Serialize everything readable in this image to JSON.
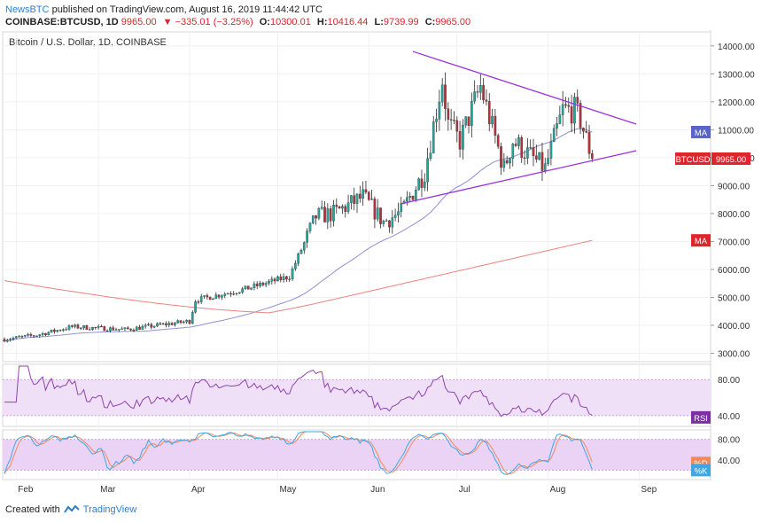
{
  "header": {
    "publisher": "NewsBTC",
    "published_text": " published on TradingView.com, August 16, 2019 11:44:42 UTC"
  },
  "ohlc": {
    "symbol": "COINBASE:BTCUSD, 1D",
    "last": "9965.00",
    "change": "−335.01 (−3.25%)",
    "o_label": "O:",
    "o": "10300.01",
    "h_label": "H:",
    "h": "10416.44",
    "l_label": "L:",
    "l": "9739.99",
    "c_label": "C:",
    "c": "9965.00"
  },
  "footer": {
    "created_with": "Created with",
    "brand": "TradingView"
  },
  "colors": {
    "up": "#26a69a",
    "down": "#b4333a",
    "ma_short": "#8f8fd4",
    "ma_long": "#f08080",
    "trendline": "#9b30e0",
    "rsi_line": "#8e44ad",
    "stoch_k": "#3fa7e0",
    "stoch_d": "#f08a5d",
    "rsi_band": "#efe0f7",
    "stoch_band": "#ebd3f6",
    "price_badge": "#e0242c",
    "rsi_badge": "#7b2fa0"
  },
  "chart_data": {
    "type": "candlestick",
    "title": "Bitcoin / U.S. Dollar, 1D, COINBASE",
    "x_ticks": [
      "Feb",
      "Mar",
      "Apr",
      "May",
      "Jun",
      "Jul",
      "Aug",
      "Sep"
    ],
    "price_axis": {
      "ylim": [
        2700,
        14500
      ],
      "ticks": [
        "14000.00",
        "13000.00",
        "12000.00",
        "11000.00",
        "10000.00",
        "9000.00",
        "8000.00",
        "7000.00",
        "6000.00",
        "5000.00",
        "4000.00",
        "3000.00"
      ]
    },
    "price_keypoints": [
      [
        "2019-01-28",
        3500
      ],
      [
        "2019-02-08",
        3650
      ],
      [
        "2019-02-20",
        3950
      ],
      [
        "2019-03-10",
        3850
      ],
      [
        "2019-04-01",
        4150
      ],
      [
        "2019-04-03",
        4900
      ],
      [
        "2019-04-20",
        5300
      ],
      [
        "2019-05-05",
        5750
      ],
      [
        "2019-05-14",
        7900
      ],
      [
        "2019-05-20",
        8000
      ],
      [
        "2019-05-30",
        8600
      ],
      [
        "2019-06-06",
        7700
      ],
      [
        "2019-06-12",
        8050
      ],
      [
        "2019-06-20",
        9500
      ],
      [
        "2019-06-26",
        12800
      ],
      [
        "2019-06-28",
        11200
      ],
      [
        "2019-07-02",
        10600
      ],
      [
        "2019-07-09",
        12550
      ],
      [
        "2019-07-17",
        9600
      ],
      [
        "2019-07-20",
        10600
      ],
      [
        "2019-07-31",
        9600
      ],
      [
        "2019-08-06",
        11700
      ],
      [
        "2019-08-10",
        11700
      ],
      [
        "2019-08-12",
        11350
      ],
      [
        "2019-08-16",
        9965
      ]
    ],
    "last_price": 9965.0,
    "series": [
      {
        "name": "BTCUSD",
        "kind": "candles"
      },
      {
        "name": "MA",
        "kind": "moving-average-short"
      },
      {
        "name": "MA",
        "kind": "moving-average-long"
      }
    ],
    "trendlines": [
      {
        "from": [
          "2019-06-16",
          13800
        ],
        "to": [
          "2019-08-31",
          11200
        ]
      },
      {
        "from": [
          "2019-06-12",
          8350
        ],
        "to": [
          "2019-08-31",
          10250
        ]
      }
    ],
    "rsi": {
      "label": "RSI",
      "ylim": [
        30,
        95
      ],
      "band": [
        40,
        80
      ],
      "ticks": [
        "80.00",
        "40.00"
      ]
    },
    "stochastic": {
      "label_d": "%D",
      "label_k": "%K",
      "ylim": [
        5,
        95
      ],
      "band": [
        20,
        80
      ],
      "ticks": [
        "80.00",
        "40.00"
      ]
    },
    "price_labels": {
      "ma_top": "MA",
      "price_tag": "BTCUSD",
      "price_value": "9965.00",
      "ma_bottom": "MA"
    }
  }
}
